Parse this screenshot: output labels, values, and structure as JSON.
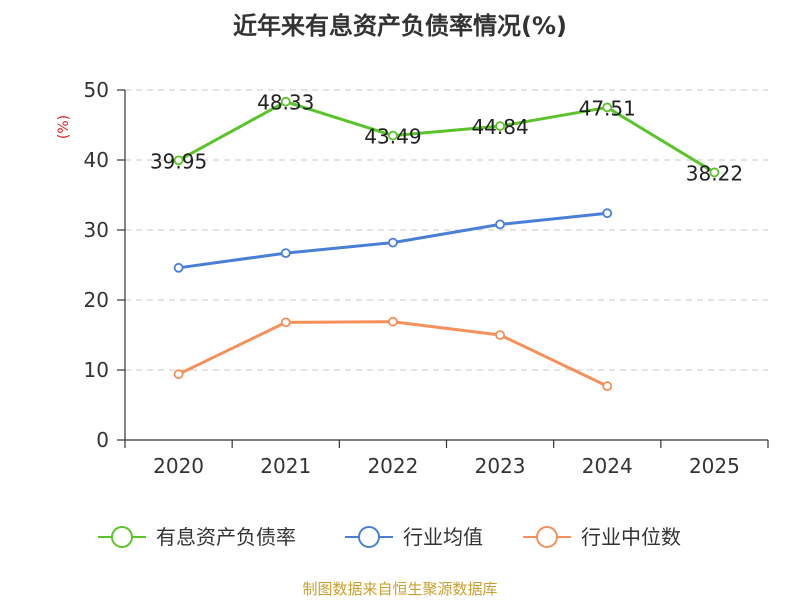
{
  "chart_data": {
    "type": "line",
    "title": "近年来有息资产负债率情况(%)",
    "ylabel": "(%)",
    "categories": [
      "2020",
      "2021",
      "2022",
      "2023",
      "2024",
      "2025"
    ],
    "ylim": [
      0,
      50
    ],
    "yticks": [
      0,
      10,
      20,
      30,
      40,
      50
    ],
    "grid": true,
    "legend_position": "bottom",
    "series": [
      {
        "name": "有息资产负债率",
        "color": "#5cc42b",
        "values": [
          39.95,
          48.33,
          43.49,
          44.84,
          47.51,
          38.22
        ],
        "labels": [
          "39.95",
          "48.33",
          "43.49",
          "44.84",
          "47.51",
          "38.22"
        ]
      },
      {
        "name": "行业均值",
        "color": "#4a7fd8",
        "values": [
          24.6,
          26.7,
          28.2,
          30.8,
          32.4,
          null
        ]
      },
      {
        "name": "行业中位数",
        "color": "#f5905a",
        "values": [
          9.4,
          16.8,
          16.9,
          15.0,
          7.7,
          null
        ]
      }
    ]
  },
  "source_note": "制图数据来自恒生聚源数据库"
}
